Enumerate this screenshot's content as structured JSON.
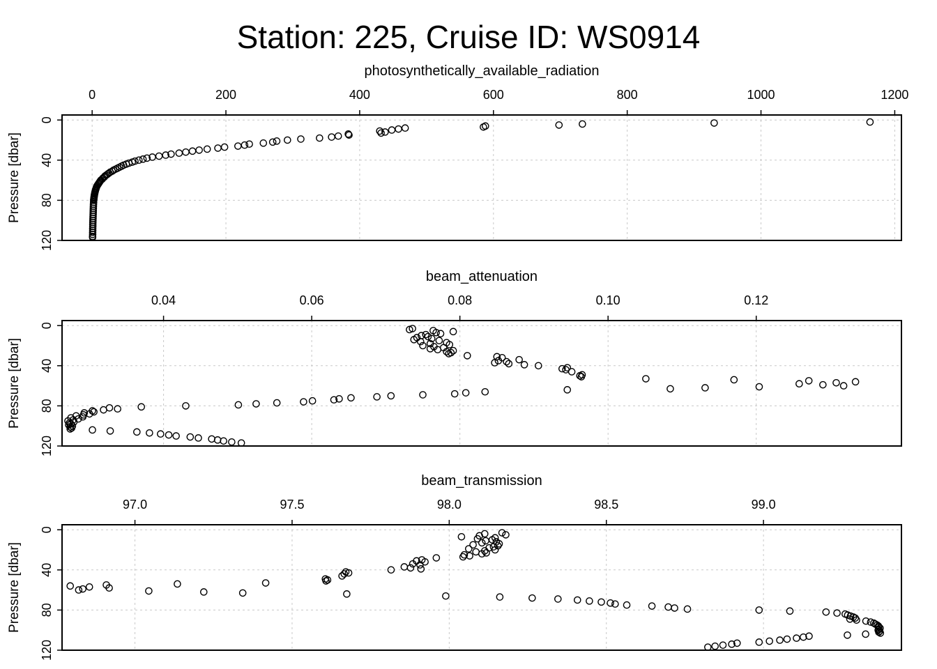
{
  "title": "Station: 225, Cruise ID: WS0914",
  "chart_data": [
    {
      "type": "scatter",
      "title": "photosynthetically_available_radiation",
      "xlabel": "photosynthetically_available_radiation",
      "ylabel": "Pressure [dbar]",
      "xlim": [
        -45,
        1210
      ],
      "ylim": [
        120,
        -5
      ],
      "y_reversed": true,
      "grid": true,
      "xticks": [
        0,
        200,
        400,
        600,
        800,
        1000,
        1200
      ],
      "yticks": [
        0,
        40,
        80,
        120
      ],
      "points": [
        [
          1163,
          2
        ],
        [
          930,
          3
        ],
        [
          733,
          4
        ],
        [
          698,
          5
        ],
        [
          588,
          6
        ],
        [
          585,
          7
        ],
        [
          468,
          8
        ],
        [
          458,
          9
        ],
        [
          448,
          10
        ],
        [
          430,
          11
        ],
        [
          438,
          12
        ],
        [
          432,
          13
        ],
        [
          383,
          14
        ],
        [
          384,
          15
        ],
        [
          368,
          16
        ],
        [
          358,
          17
        ],
        [
          340,
          18
        ],
        [
          312,
          19
        ],
        [
          292,
          20
        ],
        [
          276,
          21
        ],
        [
          270,
          22
        ],
        [
          256,
          23
        ],
        [
          235,
          24
        ],
        [
          228,
          25
        ],
        [
          218,
          26
        ],
        [
          198,
          27
        ],
        [
          188,
          28
        ],
        [
          172,
          29
        ],
        [
          160,
          30
        ],
        [
          150,
          31
        ],
        [
          140,
          32
        ],
        [
          130,
          33
        ],
        [
          118,
          34
        ],
        [
          110,
          35
        ],
        [
          100,
          36
        ],
        [
          90,
          37
        ],
        [
          82,
          38
        ],
        [
          76,
          39
        ],
        [
          70,
          40
        ],
        [
          64,
          41
        ],
        [
          60,
          42
        ],
        [
          55,
          43
        ],
        [
          51,
          44
        ],
        [
          47,
          45
        ],
        [
          44,
          46
        ],
        [
          41,
          47
        ],
        [
          38,
          48
        ],
        [
          35,
          49
        ],
        [
          32,
          50
        ],
        [
          30,
          51
        ],
        [
          27,
          52
        ],
        [
          25,
          53
        ],
        [
          23,
          54
        ],
        [
          21,
          55
        ],
        [
          19,
          56
        ],
        [
          18,
          57
        ],
        [
          16,
          58
        ],
        [
          15,
          59
        ],
        [
          13,
          60
        ],
        [
          12,
          61
        ],
        [
          11,
          62
        ],
        [
          10,
          63
        ],
        [
          9,
          64
        ],
        [
          8,
          65
        ],
        [
          7,
          66
        ],
        [
          6.5,
          67
        ],
        [
          6,
          68
        ],
        [
          5.5,
          69
        ],
        [
          5,
          70
        ],
        [
          4.6,
          71
        ],
        [
          4.2,
          72
        ],
        [
          3.9,
          73
        ],
        [
          3.6,
          74
        ],
        [
          3.3,
          75
        ],
        [
          3.1,
          76
        ],
        [
          2.9,
          77
        ],
        [
          2.7,
          78
        ],
        [
          2.5,
          79
        ],
        [
          2.3,
          80
        ],
        [
          2.2,
          82
        ],
        [
          2.0,
          84
        ],
        [
          1.9,
          86
        ],
        [
          1.8,
          88
        ],
        [
          1.7,
          90
        ],
        [
          1.6,
          92
        ],
        [
          1.5,
          94
        ],
        [
          1.4,
          96
        ],
        [
          1.3,
          98
        ],
        [
          1.2,
          100
        ],
        [
          1.1,
          102
        ],
        [
          1.0,
          104
        ],
        [
          1.0,
          106
        ],
        [
          0.9,
          108
        ],
        [
          0.9,
          110
        ],
        [
          0.8,
          112
        ],
        [
          0.8,
          114
        ],
        [
          0.7,
          116
        ],
        [
          0.7,
          117
        ]
      ]
    },
    {
      "type": "scatter",
      "title": "beam_attenuation",
      "xlabel": "beam_attenuation",
      "ylabel": "Pressure [dbar]",
      "xlim": [
        0.0263,
        0.1396
      ],
      "ylim": [
        120,
        -5
      ],
      "y_reversed": true,
      "grid": true,
      "xticks": [
        0.04,
        0.06,
        0.08,
        0.1,
        0.12
      ],
      "xtick_labels": [
        "0.04",
        "0.06",
        "0.08",
        "0.10",
        "0.12"
      ],
      "yticks": [
        0,
        40,
        80,
        120
      ],
      "points": [
        [
          0.0736,
          3
        ],
        [
          0.0732,
          4
        ],
        [
          0.0764,
          5
        ],
        [
          0.0791,
          6
        ],
        [
          0.0768,
          7
        ],
        [
          0.0774,
          8
        ],
        [
          0.0754,
          9
        ],
        [
          0.0748,
          10
        ],
        [
          0.0757,
          11
        ],
        [
          0.0742,
          12
        ],
        [
          0.0762,
          13
        ],
        [
          0.0738,
          14
        ],
        [
          0.0772,
          15
        ],
        [
          0.0747,
          16
        ],
        [
          0.0782,
          17
        ],
        [
          0.076,
          18
        ],
        [
          0.0786,
          19
        ],
        [
          0.075,
          20
        ],
        [
          0.0765,
          21
        ],
        [
          0.0778,
          22
        ],
        [
          0.076,
          23
        ],
        [
          0.077,
          24
        ],
        [
          0.0791,
          25
        ],
        [
          0.0782,
          26
        ],
        [
          0.0788,
          27
        ],
        [
          0.0785,
          28
        ],
        [
          0.081,
          30
        ],
        [
          0.085,
          31
        ],
        [
          0.0857,
          32
        ],
        [
          0.088,
          34
        ],
        [
          0.0852,
          35
        ],
        [
          0.0863,
          36
        ],
        [
          0.0847,
          37
        ],
        [
          0.0866,
          38
        ],
        [
          0.0887,
          39
        ],
        [
          0.0906,
          40
        ],
        [
          0.0945,
          42
        ],
        [
          0.0938,
          43
        ],
        [
          0.0943,
          44
        ],
        [
          0.0951,
          46
        ],
        [
          0.0965,
          49
        ],
        [
          0.0962,
          50
        ],
        [
          0.0964,
          51
        ],
        [
          0.1051,
          53
        ],
        [
          0.117,
          54
        ],
        [
          0.1271,
          55
        ],
        [
          0.1334,
          56
        ],
        [
          0.1308,
          57
        ],
        [
          0.1258,
          58
        ],
        [
          0.129,
          59
        ],
        [
          0.1318,
          60
        ],
        [
          0.1204,
          61
        ],
        [
          0.1131,
          62
        ],
        [
          0.1084,
          63
        ],
        [
          0.0945,
          64
        ],
        [
          0.0834,
          66
        ],
        [
          0.0808,
          67
        ],
        [
          0.0793,
          68
        ],
        [
          0.075,
          69
        ],
        [
          0.0707,
          70
        ],
        [
          0.0688,
          71
        ],
        [
          0.0653,
          72
        ],
        [
          0.0637,
          73
        ],
        [
          0.063,
          74
        ],
        [
          0.0601,
          75
        ],
        [
          0.0589,
          76
        ],
        [
          0.0553,
          77
        ],
        [
          0.0525,
          78
        ],
        [
          0.0501,
          79
        ],
        [
          0.043,
          80
        ],
        [
          0.037,
          81
        ],
        [
          0.0327,
          82
        ],
        [
          0.0338,
          83
        ],
        [
          0.0319,
          84
        ],
        [
          0.0304,
          85
        ],
        [
          0.0306,
          86
        ],
        [
          0.0293,
          87
        ],
        [
          0.03,
          88
        ],
        [
          0.0292,
          89
        ],
        [
          0.0282,
          90
        ],
        [
          0.0291,
          91
        ],
        [
          0.0275,
          92
        ],
        [
          0.0285,
          93
        ],
        [
          0.0278,
          94
        ],
        [
          0.0271,
          95
        ],
        [
          0.0279,
          96
        ],
        [
          0.0273,
          97
        ],
        [
          0.0275,
          98
        ],
        [
          0.0272,
          99
        ],
        [
          0.0277,
          100
        ],
        [
          0.0274,
          101
        ],
        [
          0.0276,
          102
        ],
        [
          0.0274,
          103
        ],
        [
          0.0304,
          104
        ],
        [
          0.0328,
          105
        ],
        [
          0.0364,
          106
        ],
        [
          0.0381,
          107
        ],
        [
          0.0396,
          108
        ],
        [
          0.0407,
          109
        ],
        [
          0.0417,
          110
        ],
        [
          0.0436,
          111
        ],
        [
          0.0447,
          112
        ],
        [
          0.0465,
          113
        ],
        [
          0.0473,
          114
        ],
        [
          0.0481,
          115
        ],
        [
          0.0492,
          116
        ],
        [
          0.0505,
          117
        ]
      ]
    },
    {
      "type": "scatter",
      "title": "beam_transmission",
      "xlabel": "beam_transmission",
      "ylabel": "Pressure [dbar]",
      "xlim": [
        96.768,
        99.439
      ],
      "ylim": [
        120,
        -5
      ],
      "y_reversed": true,
      "grid": true,
      "xticks": [
        97.0,
        97.5,
        98.0,
        98.5,
        99.0
      ],
      "xtick_labels": [
        "97.0",
        "97.5",
        "98.0",
        "98.5",
        "99.0"
      ],
      "yticks": [
        0,
        40,
        80,
        120
      ],
      "points": [
        [
          98.168,
          3
        ],
        [
          98.113,
          4
        ],
        [
          98.18,
          5
        ],
        [
          98.096,
          6
        ],
        [
          98.039,
          7
        ],
        [
          98.146,
          8
        ],
        [
          98.09,
          9
        ],
        [
          98.137,
          10
        ],
        [
          98.116,
          11
        ],
        [
          98.15,
          12
        ],
        [
          98.104,
          13
        ],
        [
          98.159,
          14
        ],
        [
          98.076,
          15
        ],
        [
          98.155,
          16
        ],
        [
          98.141,
          17
        ],
        [
          98.127,
          18
        ],
        [
          98.062,
          19
        ],
        [
          98.146,
          20
        ],
        [
          98.113,
          21
        ],
        [
          98.085,
          22
        ],
        [
          98.118,
          23
        ],
        [
          98.104,
          24
        ],
        [
          98.048,
          25
        ],
        [
          98.065,
          26
        ],
        [
          98.044,
          27
        ],
        [
          97.959,
          28
        ],
        [
          97.913,
          30
        ],
        [
          97.896,
          31
        ],
        [
          97.923,
          32
        ],
        [
          97.884,
          34
        ],
        [
          97.907,
          35
        ],
        [
          97.857,
          37
        ],
        [
          97.877,
          38
        ],
        [
          97.91,
          39
        ],
        [
          97.815,
          40
        ],
        [
          97.671,
          42
        ],
        [
          97.68,
          43
        ],
        [
          97.666,
          44
        ],
        [
          97.659,
          46
        ],
        [
          97.606,
          49
        ],
        [
          97.613,
          50
        ],
        [
          97.608,
          51
        ],
        [
          97.416,
          53
        ],
        [
          97.135,
          54
        ],
        [
          96.909,
          55
        ],
        [
          96.794,
          56
        ],
        [
          96.855,
          57
        ],
        [
          96.918,
          58
        ],
        [
          96.834,
          59
        ],
        [
          96.821,
          60
        ],
        [
          97.044,
          61
        ],
        [
          97.219,
          62
        ],
        [
          97.343,
          63
        ],
        [
          97.674,
          64
        ],
        [
          97.989,
          66
        ],
        [
          98.161,
          67
        ],
        [
          98.264,
          68
        ],
        [
          98.346,
          69
        ],
        [
          98.408,
          70
        ],
        [
          98.446,
          71
        ],
        [
          98.484,
          72
        ],
        [
          98.513,
          73
        ],
        [
          98.528,
          74
        ],
        [
          98.565,
          75
        ],
        [
          98.645,
          76
        ],
        [
          98.697,
          77
        ],
        [
          98.717,
          78
        ],
        [
          98.758,
          79
        ],
        [
          98.986,
          80
        ],
        [
          99.084,
          81
        ],
        [
          99.199,
          82
        ],
        [
          99.234,
          83
        ],
        [
          99.26,
          84
        ],
        [
          99.268,
          85
        ],
        [
          99.277,
          86
        ],
        [
          99.286,
          87
        ],
        [
          99.292,
          88
        ],
        [
          99.275,
          89
        ],
        [
          99.296,
          90
        ],
        [
          99.326,
          91
        ],
        [
          99.341,
          92
        ],
        [
          99.351,
          93
        ],
        [
          99.356,
          94
        ],
        [
          99.362,
          95
        ],
        [
          99.366,
          96
        ],
        [
          99.367,
          97
        ],
        [
          99.371,
          98
        ],
        [
          99.366,
          99
        ],
        [
          99.365,
          100
        ],
        [
          99.37,
          101
        ],
        [
          99.367,
          102
        ],
        [
          99.372,
          103
        ],
        [
          99.325,
          104
        ],
        [
          99.267,
          105
        ],
        [
          99.145,
          106
        ],
        [
          99.127,
          107
        ],
        [
          99.105,
          108
        ],
        [
          99.075,
          109
        ],
        [
          99.052,
          110
        ],
        [
          99.019,
          111
        ],
        [
          98.986,
          112
        ],
        [
          98.916,
          113
        ],
        [
          98.899,
          114
        ],
        [
          98.871,
          115
        ],
        [
          98.846,
          116
        ],
        [
          98.823,
          117
        ]
      ]
    }
  ]
}
